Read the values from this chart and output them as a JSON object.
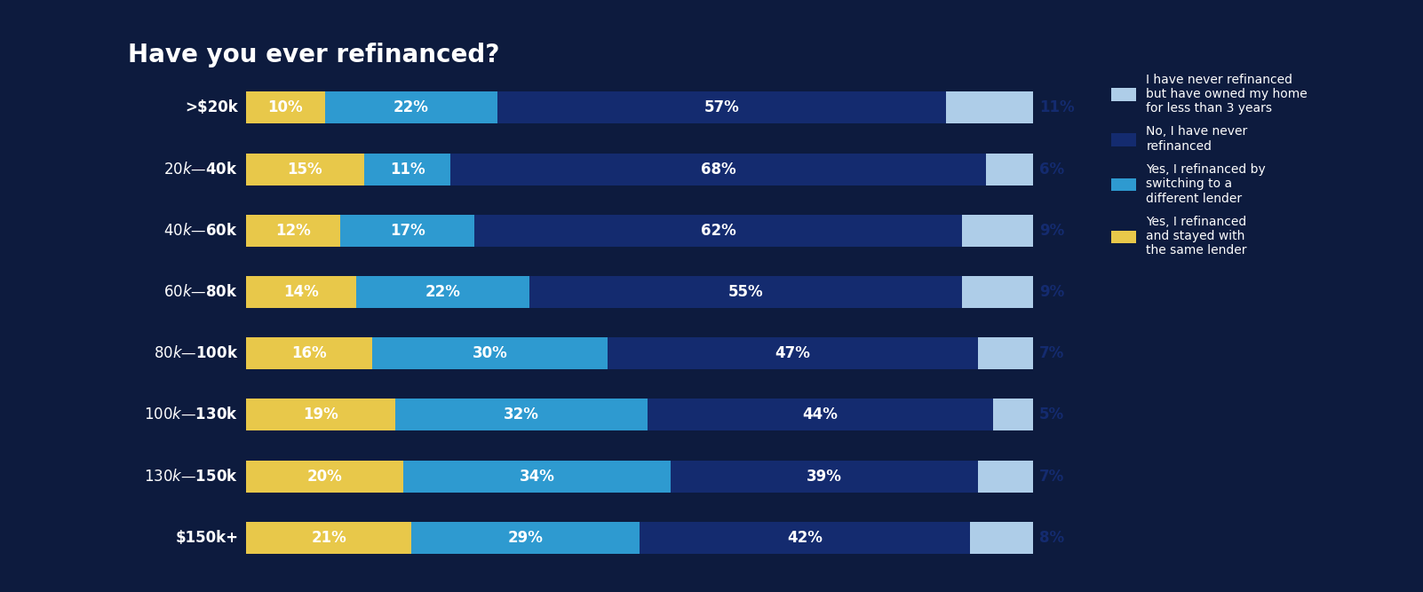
{
  "title": "Have you ever refinanced?",
  "categories": [
    ">$20k",
    "$20k—$40k",
    "$40k—$60k",
    "$60k—$80k",
    "$80k—$100k",
    "$100k—$130k",
    "$130k—$150k",
    "$150k+"
  ],
  "segments": {
    "yellow": [
      10,
      15,
      12,
      14,
      16,
      19,
      20,
      21
    ],
    "blue": [
      22,
      11,
      17,
      22,
      30,
      32,
      34,
      29
    ],
    "navy": [
      57,
      68,
      62,
      55,
      47,
      44,
      39,
      42
    ],
    "light": [
      11,
      6,
      9,
      9,
      7,
      5,
      7,
      8
    ]
  },
  "colors": {
    "yellow": "#E8C84A",
    "blue": "#2E9AD0",
    "navy": "#142B6F",
    "light": "#AECDE8"
  },
  "legend_labels": [
    "I have never refinanced\nbut have owned my home\nfor less than 3 years",
    "No, I have never\nrefinanced",
    "Yes, I refinanced by\nswitching to a\ndifferent lender",
    "Yes, I refinanced\nand stayed with\nthe same lender"
  ],
  "legend_colors": [
    "#AECDE8",
    "#142B6F",
    "#2E9AD0",
    "#E8C84A"
  ],
  "title_color": "#142B6F",
  "background_color": "#0D1B3E",
  "chart_bg": "#0D1B3E",
  "label_fontsize": 12,
  "category_fontsize": 12,
  "title_fontsize": 20
}
